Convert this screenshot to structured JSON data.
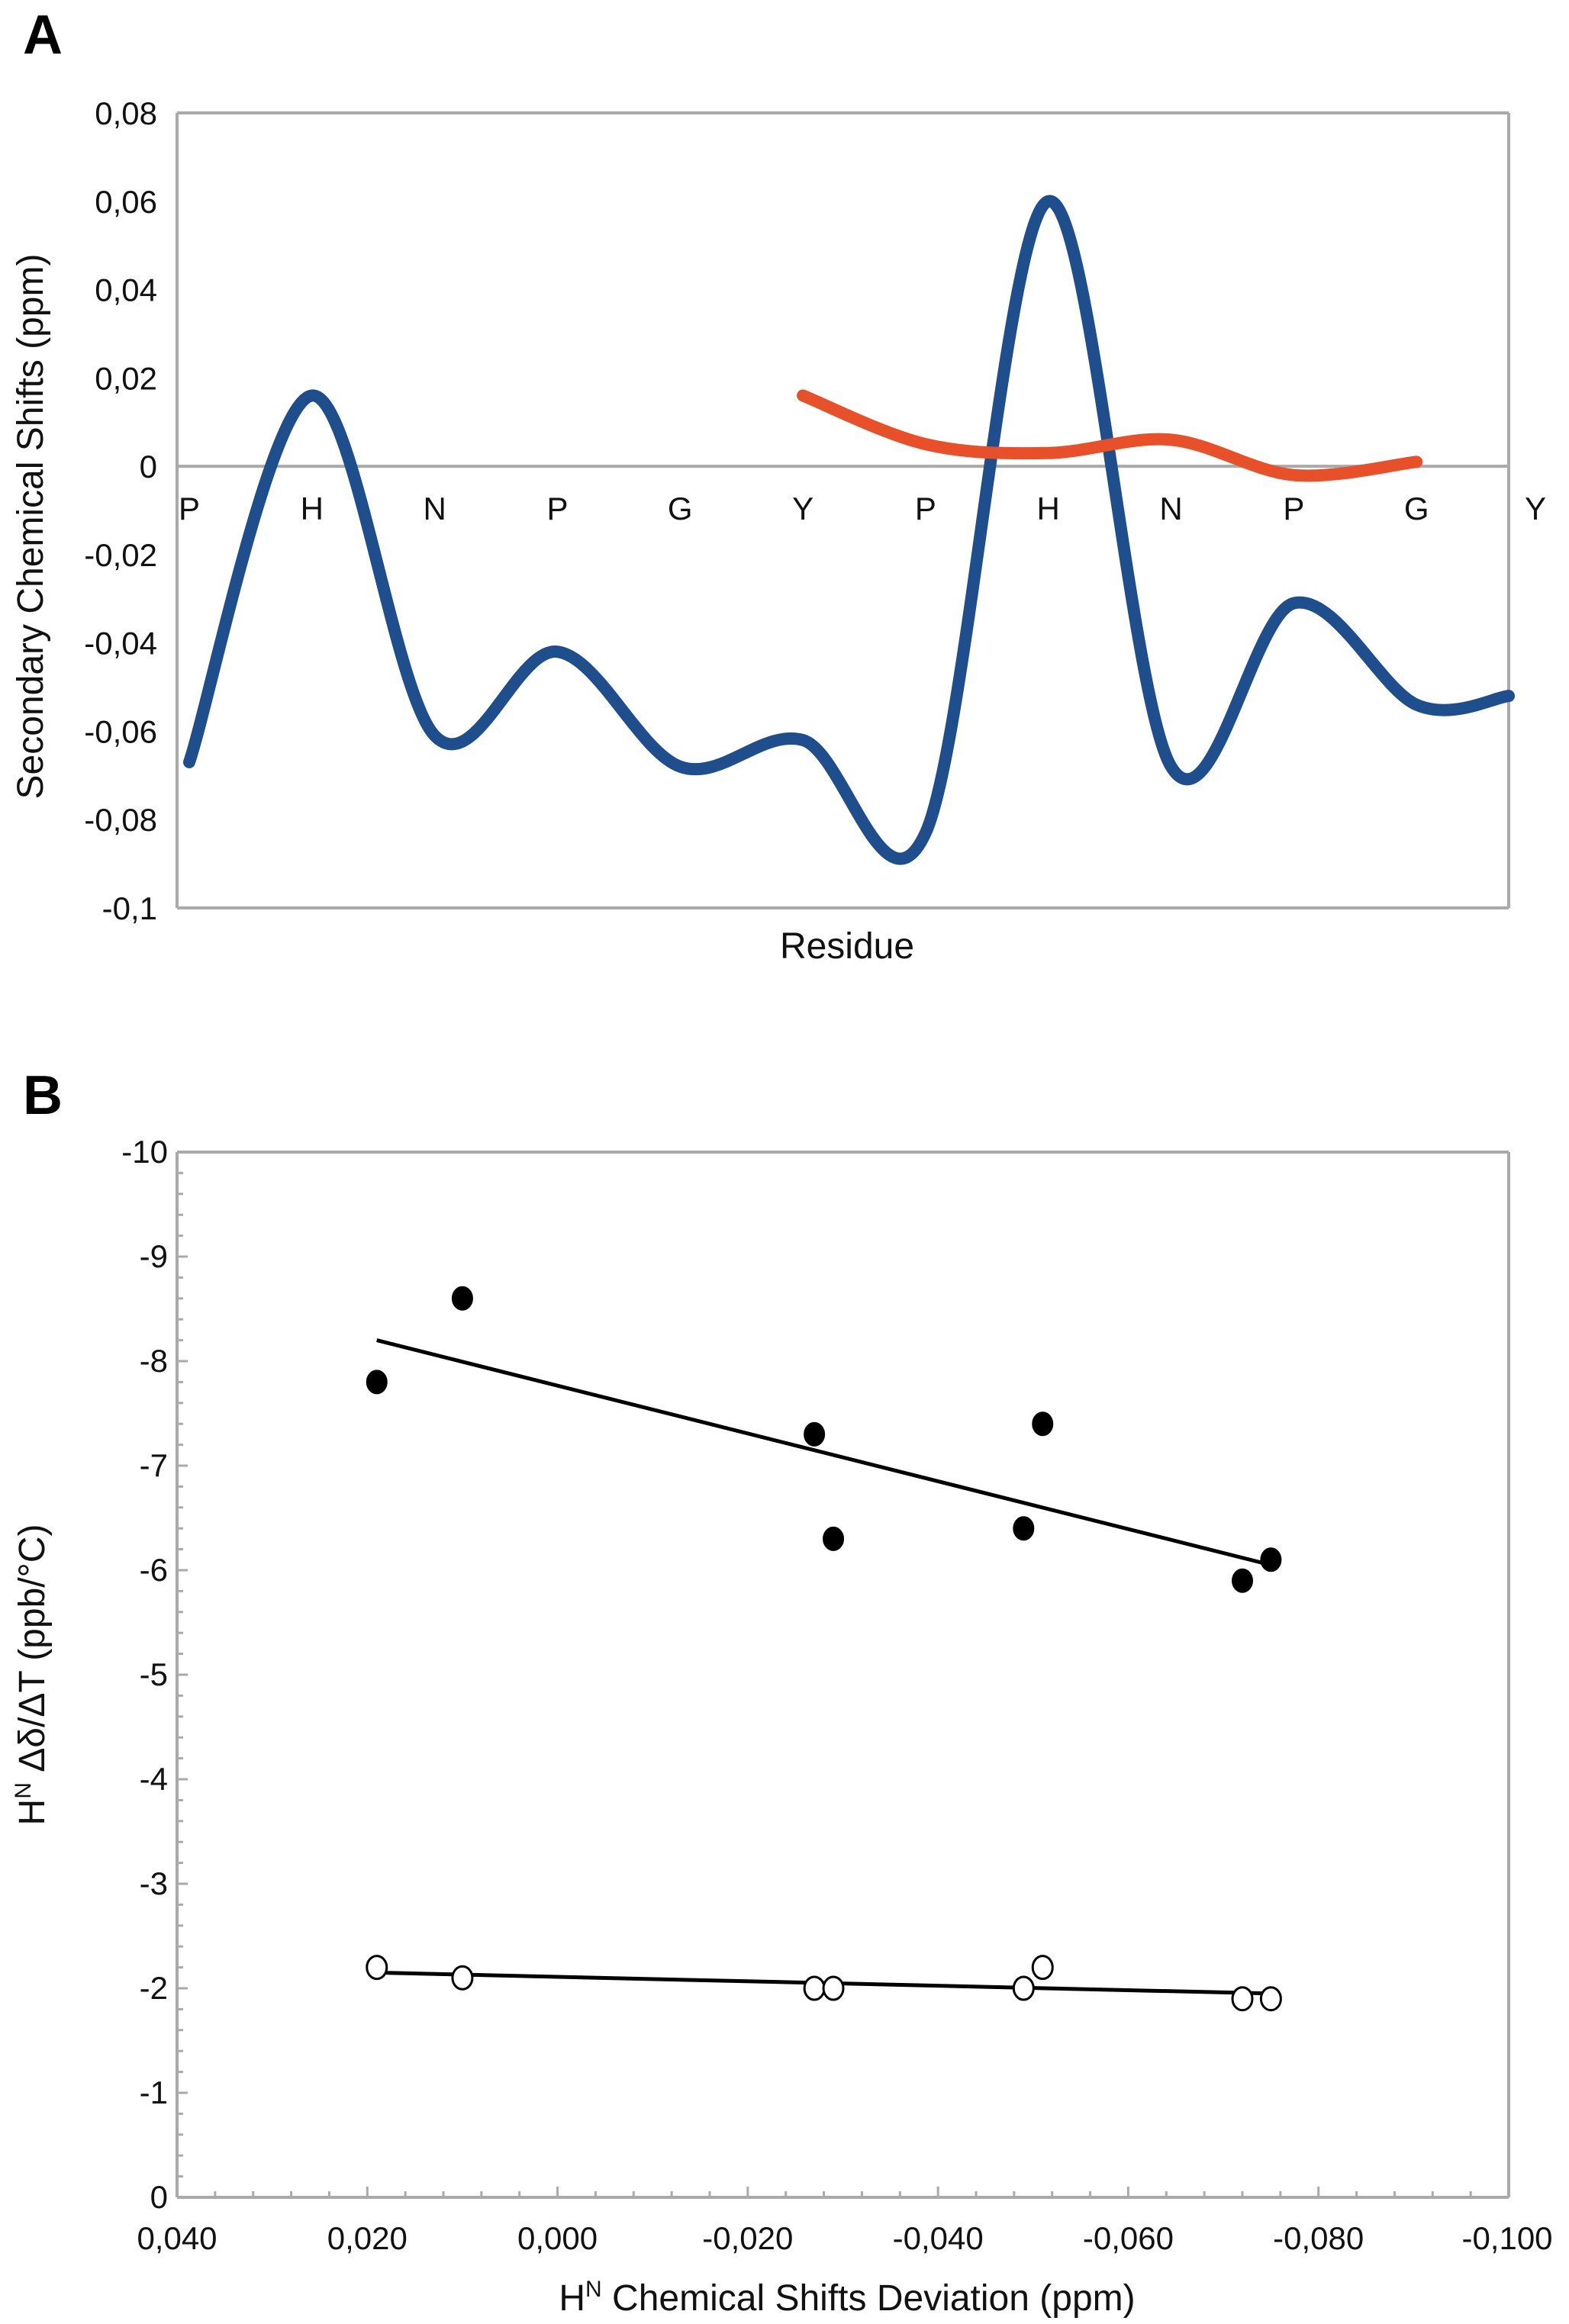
{
  "panel_labels": [
    "A",
    "B"
  ],
  "chart_data": [
    {
      "type": "line",
      "panel": "A",
      "title": "",
      "xlabel": "Residue",
      "ylabel": "Secondary Chemical Shifts (ppm)",
      "ylim": [
        -0.1,
        0.08
      ],
      "grid": false,
      "categories": [
        "P",
        "H",
        "N",
        "P",
        "G",
        "Y",
        "P",
        "H",
        "N",
        "P",
        "G",
        "Y"
      ],
      "yticks": [
        "0,08",
        "0,06",
        "0,04",
        "0,02",
        "0",
        "-0,02",
        "-0,04",
        "-0,06",
        "-0,08",
        "-0,1"
      ],
      "series": [
        {
          "name": "blue",
          "color": "#1f4e8c",
          "x": [
            0,
            1,
            2,
            3,
            4,
            5,
            6,
            7,
            8,
            9,
            10,
            11
          ],
          "values": [
            -0.067,
            0.016,
            -0.061,
            -0.042,
            -0.068,
            -0.062,
            -0.083,
            0.06,
            -0.068,
            -0.031,
            -0.054,
            -0.052
          ]
        },
        {
          "name": "orange",
          "color": "#e8502a",
          "x": [
            5,
            6,
            7,
            8,
            9,
            10
          ],
          "values": [
            0.016,
            0.005,
            0.003,
            0.006,
            -0.002,
            0.001
          ]
        }
      ]
    },
    {
      "type": "scatter",
      "panel": "B",
      "title": "",
      "xlabel": "H<sup>N</sup> Chemical Shifts Deviation (ppm)",
      "xlabel_main": "H",
      "xlabel_sup": "N",
      "xlabel_rest": " Chemical Shifts Deviation (ppm)",
      "ylabel_main": "H",
      "ylabel_sup": "N",
      "ylabel_rest": " Δδ/ΔT (ppb/°C)",
      "xlim": [
        0.04,
        -0.1
      ],
      "ylim": [
        0,
        -10
      ],
      "xticks": [
        "0,040",
        "0,020",
        "0,000",
        "-0,020",
        "-0,040",
        "-0,060",
        "-0,080",
        "-0,100"
      ],
      "yticks": [
        "-10",
        "-9",
        "-8",
        "-7",
        "-6",
        "-5",
        "-4",
        "-3",
        "-2",
        "-1",
        "0"
      ],
      "series": [
        {
          "name": "filled",
          "marker": "filled-circle",
          "x": [
            0.019,
            0.01,
            -0.027,
            -0.029,
            -0.049,
            -0.051,
            -0.072,
            -0.075
          ],
          "y": [
            -7.8,
            -8.6,
            -7.3,
            -6.3,
            -6.4,
            -7.4,
            -5.9,
            -6.1
          ],
          "trendline": [
            [
              0.019,
              -8.2
            ],
            [
              -0.075,
              -6.05
            ]
          ]
        },
        {
          "name": "open",
          "marker": "open-circle",
          "x": [
            0.019,
            0.01,
            -0.027,
            -0.029,
            -0.049,
            -0.051,
            -0.072,
            -0.075
          ],
          "y": [
            -2.2,
            -2.1,
            -2.0,
            -2.0,
            -2.0,
            -2.2,
            -1.9,
            -1.9
          ],
          "trendline": [
            [
              0.019,
              -2.15
            ],
            [
              -0.075,
              -1.95
            ]
          ]
        }
      ]
    }
  ]
}
